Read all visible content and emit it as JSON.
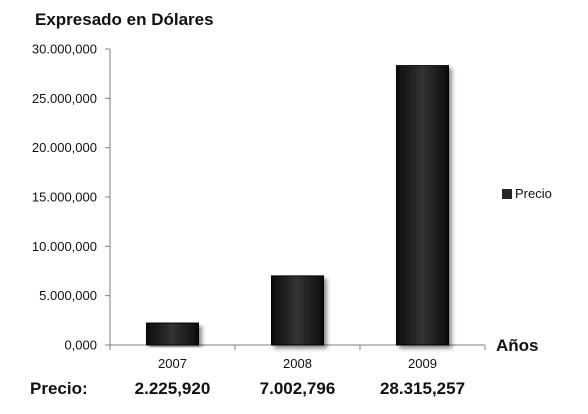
{
  "chart_data": {
    "type": "bar",
    "title": "Expresado en Dólares",
    "xlabel": "Años",
    "ylabel": "",
    "categories": [
      "2007",
      "2008",
      "2009"
    ],
    "series": [
      {
        "name": "Precio",
        "values": [
          2225920,
          7002796,
          28315257
        ],
        "color": "#262626"
      }
    ],
    "ylim": [
      0,
      30000000
    ],
    "y_ticks": [
      "0,000",
      "5.000,000",
      "10.000,000",
      "15.000,000",
      "20.000,000",
      "25.000,000",
      "30.000,000"
    ],
    "legend_position": "right",
    "grid": false
  },
  "value_table": {
    "label": "Precio:",
    "values": [
      "2.225,920",
      "7.002,796",
      "28.315,257"
    ]
  }
}
